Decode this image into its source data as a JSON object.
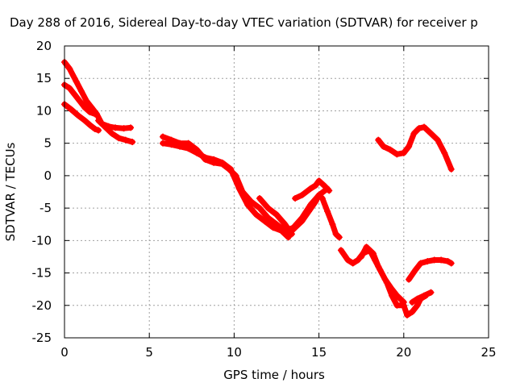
{
  "chart_data": {
    "type": "scatter",
    "title": "Day 288 of 2016, Sidereal Day-to-day VTEC variation (SDTVAR) for receiver p",
    "xlabel": "GPS time / hours",
    "ylabel": "SDTVAR / TECUs",
    "xlim": [
      0,
      25
    ],
    "ylim": [
      -25,
      20
    ],
    "xticks": [
      0,
      5,
      10,
      15,
      20,
      25
    ],
    "yticks": [
      -25,
      -20,
      -15,
      -10,
      -5,
      0,
      5,
      10,
      15,
      20
    ],
    "grid": true,
    "legend": "none",
    "marker_color": "#ff0000",
    "series": [
      {
        "x": [
          0.0,
          0.3,
          0.7,
          1.0,
          1.3,
          1.6,
          1.9,
          2.2,
          2.6,
          3.0,
          3.5,
          3.9
        ],
        "y": [
          17.5,
          16.5,
          14.5,
          13.0,
          11.5,
          10.5,
          9.5,
          8.0,
          7.6,
          7.4,
          7.3,
          7.4
        ]
      },
      {
        "x": [
          0.0,
          0.3,
          0.6,
          0.9,
          1.2,
          1.5,
          1.8
        ],
        "y": [
          14.0,
          13.5,
          12.5,
          11.5,
          10.5,
          9.8,
          9.5
        ]
      },
      {
        "x": [
          0.0,
          0.4,
          0.8,
          1.2,
          1.5,
          1.8,
          2.0
        ],
        "y": [
          11.0,
          10.2,
          9.3,
          8.5,
          7.8,
          7.2,
          7.0
        ]
      },
      {
        "x": [
          2.0,
          2.4,
          2.8,
          3.2,
          3.6,
          4.0
        ],
        "y": [
          8.5,
          7.5,
          6.5,
          5.8,
          5.5,
          5.2
        ]
      },
      {
        "x": [
          5.8,
          6.3,
          6.8,
          7.3,
          7.8,
          8.3,
          8.8,
          9.3,
          9.7,
          10.1,
          10.5,
          11.0,
          11.5,
          12.0,
          12.5,
          13.0,
          13.5,
          14.0,
          14.5,
          15.0,
          15.5
        ],
        "y": [
          6.0,
          5.5,
          5.0,
          5.0,
          4.0,
          2.5,
          2.0,
          1.8,
          1.0,
          0.0,
          -2.5,
          -4.0,
          -5.0,
          -6.5,
          -7.5,
          -8.5,
          -8.0,
          -6.5,
          -4.5,
          -3.0,
          -2.0
        ]
      },
      {
        "x": [
          5.8,
          6.3,
          6.8,
          7.3,
          7.8,
          8.3,
          8.8,
          9.3,
          9.8,
          10.3,
          10.8,
          11.3,
          11.8,
          12.3,
          12.8,
          13.2
        ],
        "y": [
          5.0,
          4.8,
          4.5,
          4.2,
          3.5,
          2.8,
          2.5,
          2.0,
          1.0,
          -2.0,
          -4.5,
          -6.0,
          -7.0,
          -8.0,
          -8.5,
          -9.5
        ]
      },
      {
        "x": [
          13.2,
          13.6,
          14.0,
          14.4,
          14.8,
          15.0,
          15.2,
          15.5,
          15.8,
          16.0,
          16.2
        ],
        "y": [
          -9.0,
          -8.0,
          -7.0,
          -5.5,
          -4.0,
          -3.0,
          -3.5,
          -5.5,
          -7.5,
          -9.0,
          -9.5
        ]
      },
      {
        "x": [
          11.5,
          12.0,
          12.5,
          13.0,
          13.4
        ],
        "y": [
          -3.5,
          -5.0,
          -6.0,
          -7.5,
          -9.0
        ]
      },
      {
        "x": [
          13.6,
          14.0,
          14.5,
          14.8,
          15.0,
          15.3,
          15.6
        ],
        "y": [
          -3.5,
          -3.0,
          -2.0,
          -1.5,
          -0.8,
          -1.5,
          -2.3
        ]
      },
      {
        "x": [
          16.3,
          16.7,
          17.0,
          17.3,
          17.6,
          18.0,
          18.3,
          18.6,
          19.0,
          19.3,
          19.6,
          20.0,
          20.2,
          20.5,
          20.8,
          21.0,
          21.3
        ],
        "y": [
          -11.5,
          -13.0,
          -13.5,
          -13.0,
          -12.0,
          -11.5,
          -13.0,
          -14.5,
          -16.5,
          -18.5,
          -20.0,
          -20.0,
          -21.5,
          -21.0,
          -20.0,
          -19.0,
          -18.5
        ]
      },
      {
        "x": [
          17.5,
          17.8,
          18.2,
          18.5,
          18.9,
          19.3,
          19.6,
          20.0
        ],
        "y": [
          -12.5,
          -11.0,
          -12.0,
          -14.0,
          -16.0,
          -17.5,
          -18.5,
          -19.5
        ]
      },
      {
        "x": [
          20.3,
          20.7,
          21.0,
          21.4,
          21.8,
          22.2,
          22.6,
          22.8
        ],
        "y": [
          -16.0,
          -14.5,
          -13.5,
          -13.2,
          -13.0,
          -13.0,
          -13.2,
          -13.5
        ]
      },
      {
        "x": [
          20.5,
          20.8,
          21.2,
          21.6
        ],
        "y": [
          -19.5,
          -19.0,
          -18.5,
          -18.0
        ]
      },
      {
        "x": [
          18.5,
          18.8,
          19.2,
          19.6,
          20.0,
          20.3,
          20.6,
          20.9,
          21.2,
          21.6,
          22.0,
          22.4,
          22.8
        ],
        "y": [
          5.5,
          4.5,
          4.0,
          3.3,
          3.5,
          4.5,
          6.5,
          7.3,
          7.5,
          6.5,
          5.5,
          3.5,
          1.0
        ]
      }
    ]
  }
}
